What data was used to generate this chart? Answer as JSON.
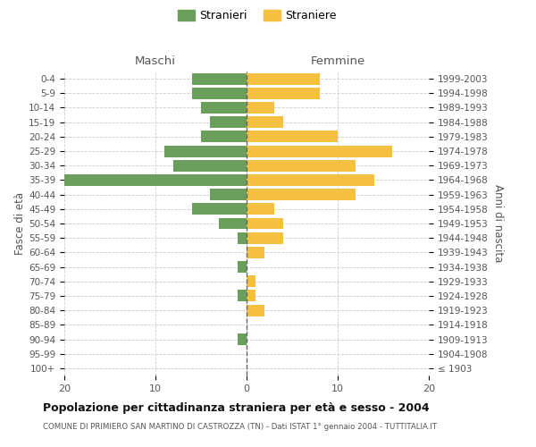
{
  "age_groups": [
    "0-4",
    "5-9",
    "10-14",
    "15-19",
    "20-24",
    "25-29",
    "30-34",
    "35-39",
    "40-44",
    "45-49",
    "50-54",
    "55-59",
    "60-64",
    "65-69",
    "70-74",
    "75-79",
    "80-84",
    "85-89",
    "90-94",
    "95-99",
    "100+"
  ],
  "birth_years": [
    "1999-2003",
    "1994-1998",
    "1989-1993",
    "1984-1988",
    "1979-1983",
    "1974-1978",
    "1969-1973",
    "1964-1968",
    "1959-1963",
    "1954-1958",
    "1949-1953",
    "1944-1948",
    "1939-1943",
    "1934-1938",
    "1929-1933",
    "1924-1928",
    "1919-1923",
    "1914-1918",
    "1909-1913",
    "1904-1908",
    "≤ 1903"
  ],
  "maschi": [
    6,
    6,
    5,
    4,
    5,
    9,
    8,
    20,
    4,
    6,
    3,
    1,
    0,
    1,
    0,
    1,
    0,
    0,
    1,
    0,
    0
  ],
  "femmine": [
    8,
    8,
    3,
    4,
    10,
    16,
    12,
    14,
    12,
    3,
    4,
    4,
    2,
    0,
    1,
    1,
    2,
    0,
    0,
    0,
    0
  ],
  "maschi_color": "#6a9f5b",
  "femmine_color": "#f5c040",
  "background_color": "#ffffff",
  "grid_color": "#cccccc",
  "center_line_color": "#666666",
  "title": "Popolazione per cittadinanza straniera per età e sesso - 2004",
  "subtitle": "COMUNE DI PRIMIERO SAN MARTINO DI CASTROZZA (TN) - Dati ISTAT 1° gennaio 2004 - TUTTITALIA.IT",
  "ylabel_left": "Fasce di età",
  "ylabel_right": "Anni di nascita",
  "header_left": "Maschi",
  "header_right": "Femmine",
  "legend_maschi": "Stranieri",
  "legend_femmine": "Straniere",
  "xlim": 20,
  "bar_height": 0.8
}
